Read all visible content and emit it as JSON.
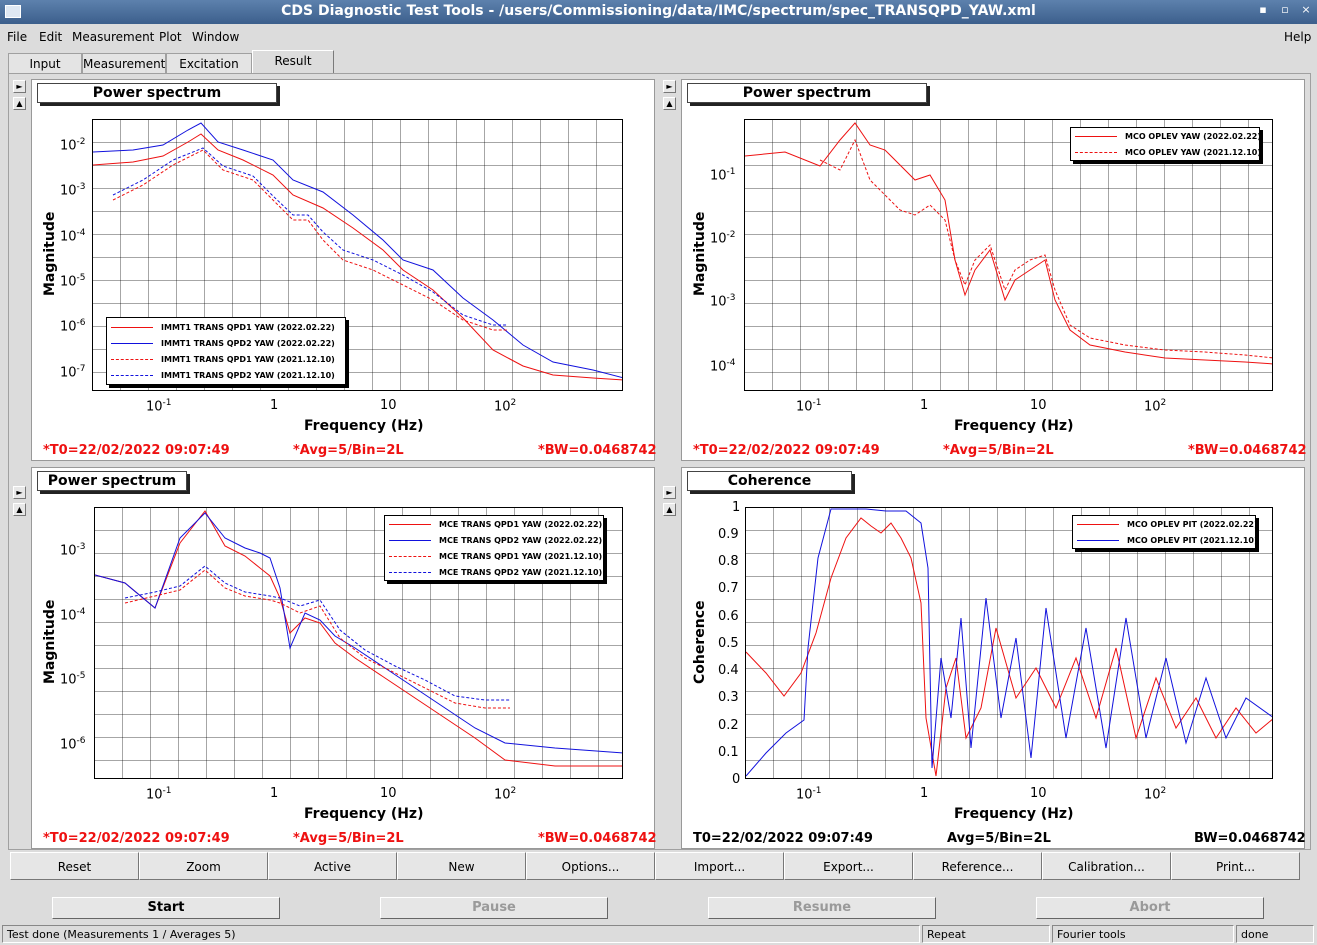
{
  "window": {
    "title": "CDS Diagnostic Test Tools - /users/Commissioning/data/IMC/spectrum/spec_TRANSQPD_YAW.xml",
    "controls": [
      "▪",
      "▫",
      "×"
    ]
  },
  "menu": {
    "items": [
      "File",
      "Edit",
      "Measurement",
      "Plot",
      "Window"
    ],
    "help": "Help"
  },
  "tabs": [
    {
      "label": "Input"
    },
    {
      "label": "Measurement"
    },
    {
      "label": "Excitation"
    },
    {
      "label": "Result"
    }
  ],
  "plots": [
    {
      "title": "Power spectrum",
      "ylabel": "Magnitude",
      "xlabel": "Frequency (Hz)",
      "yticks": [
        "10-2",
        "10-3",
        "10-4",
        "10-5",
        "10-6",
        "10-7"
      ],
      "xticks": [
        "10-1",
        "1",
        "10",
        "102"
      ],
      "legend": [
        {
          "name": "IMMT1 TRANS QPD1 YAW (2022.02.22)",
          "color": "#ee1111",
          "style": "solid"
        },
        {
          "name": "IMMT1 TRANS QPD2 YAW (2022.02.22)",
          "color": "#1111dd",
          "style": "solid"
        },
        {
          "name": "IMMT1 TRANS QPD1 YAW (2021.12.10)",
          "color": "#ee1111",
          "style": "dashed"
        },
        {
          "name": "IMMT1 TRANS QPD2 YAW (2021.12.10)",
          "color": "#1111dd",
          "style": "dashed"
        }
      ],
      "t0": "*T0=22/02/2022 09:07:49",
      "avg": "*Avg=5/Bin=2L",
      "bw": "*BW=0.0468742"
    },
    {
      "title": "Power spectrum",
      "ylabel": "Magnitude",
      "xlabel": "Frequency (Hz)",
      "yticks": [
        "10-1",
        "10-2",
        "10-3",
        "10-4"
      ],
      "xticks": [
        "10-1",
        "1",
        "10",
        "102"
      ],
      "legend": [
        {
          "name": "MCO OPLEV YAW (2022.02.22)",
          "color": "#ee1111",
          "style": "solid"
        },
        {
          "name": "MCO OPLEV YAW (2021.12.10)",
          "color": "#ee1111",
          "style": "dashed"
        }
      ],
      "t0": "*T0=22/02/2022 09:07:49",
      "avg": "*Avg=5/Bin=2L",
      "bw": "*BW=0.0468742"
    },
    {
      "title": "Power spectrum",
      "ylabel": "Magnitude",
      "xlabel": "Frequency (Hz)",
      "yticks": [
        "10-3",
        "10-4",
        "10-5",
        "10-6"
      ],
      "xticks": [
        "10-1",
        "1",
        "10",
        "102"
      ],
      "legend": [
        {
          "name": "MCE TRANS QPD1 YAW (2022.02.22)",
          "color": "#ee1111",
          "style": "solid"
        },
        {
          "name": "MCE TRANS QPD2 YAW (2022.02.22)",
          "color": "#1111dd",
          "style": "solid"
        },
        {
          "name": "MCE TRANS QPD1 YAW (2021.12.10)",
          "color": "#ee1111",
          "style": "dashed"
        },
        {
          "name": "MCE TRANS QPD2 YAW (2021.12.10)",
          "color": "#1111dd",
          "style": "dashed"
        }
      ],
      "t0": "*T0=22/02/2022 09:07:49",
      "avg": "*Avg=5/Bin=2L",
      "bw": "*BW=0.0468742"
    },
    {
      "title": "Coherence",
      "ylabel": "Coherence",
      "xlabel": "Frequency (Hz)",
      "yticks": [
        "1",
        "0.9",
        "0.8",
        "0.7",
        "0.6",
        "0.5",
        "0.4",
        "0.3",
        "0.2",
        "0.1",
        "0"
      ],
      "xticks": [
        "10-1",
        "1",
        "10",
        "102"
      ],
      "legend": [
        {
          "name": "MCO OPLEV PIT (2022.02.22)",
          "color": "#ee1111",
          "style": "solid"
        },
        {
          "name": "MCO OPLEV PIT (2021.12.10)",
          "color": "#1111dd",
          "style": "solid"
        }
      ],
      "t0": "T0=22/02/2022 09:07:49",
      "avg": "Avg=5/Bin=2L",
      "bw": "BW=0.0468742"
    }
  ],
  "buttons": [
    "Reset",
    "Zoom",
    "Active",
    "New",
    "Options...",
    "Import...",
    "Export...",
    "Reference...",
    "Calibration...",
    "Print..."
  ],
  "actions": [
    {
      "label": "Start",
      "enabled": true
    },
    {
      "label": "Pause",
      "enabled": false
    },
    {
      "label": "Resume",
      "enabled": false
    },
    {
      "label": "Abort",
      "enabled": false
    }
  ],
  "status": {
    "message": "Test done (Measurements 1 / Averages 5)",
    "repeat": "Repeat",
    "fourier": "Fourier tools",
    "state": "done"
  },
  "chart_data": [
    {
      "type": "line",
      "title": "Power spectrum",
      "xlabel": "Frequency (Hz)",
      "ylabel": "Magnitude",
      "xscale": "log",
      "yscale": "log",
      "xlim": [
        0.03,
        800
      ],
      "ylim": [
        3e-08,
        0.05
      ],
      "legend_position": "bottom-left",
      "grid": true,
      "series": [
        {
          "name": "IMMT1 TRANS QPD1 YAW (2022.02.22)",
          "x": [
            0.03,
            0.1,
            0.25,
            0.5,
            1,
            2,
            5,
            10,
            30,
            100,
            800
          ],
          "y": [
            0.004,
            0.008,
            0.02,
            0.003,
            0.001,
            0.0003,
            4e-05,
            1e-05,
            1e-06,
            1e-07,
            6e-08
          ]
        },
        {
          "name": "IMMT1 TRANS QPD2 YAW (2022.02.22)",
          "x": [
            0.03,
            0.1,
            0.25,
            0.5,
            1,
            2,
            5,
            10,
            30,
            100,
            800
          ],
          "y": [
            0.007,
            0.01,
            0.035,
            0.008,
            0.002,
            0.0008,
            0.0001,
            2e-05,
            2e-06,
            2e-07,
            7e-08
          ]
        },
        {
          "name": "IMMT1 TRANS QPD1 YAW (2021.12.10)",
          "x": [
            0.03,
            0.1,
            0.25,
            0.5,
            1,
            2,
            5,
            10,
            30,
            100
          ],
          "y": [
            0.0005,
            0.0008,
            0.008,
            0.0015,
            0.0008,
            0.0001,
            1e-05,
            5e-06,
            8e-07,
            8e-07
          ]
        },
        {
          "name": "IMMT1 TRANS QPD2 YAW (2021.12.10)",
          "x": [
            0.03,
            0.1,
            0.25,
            0.5,
            1,
            2,
            5,
            10,
            30,
            100
          ],
          "y": [
            0.0006,
            0.001,
            0.01,
            0.002,
            0.0009,
            0.00015,
            1.5e-05,
            6e-06,
            9e-07,
            9e-07
          ]
        }
      ]
    },
    {
      "type": "line",
      "title": "Power spectrum",
      "xlabel": "Frequency (Hz)",
      "ylabel": "Magnitude",
      "xscale": "log",
      "yscale": "log",
      "xlim": [
        0.03,
        800
      ],
      "ylim": [
        5e-05,
        0.8
      ],
      "legend_position": "top-right",
      "grid": true,
      "series": [
        {
          "name": "MCO OPLEV YAW (2022.02.22)",
          "x": [
            0.03,
            0.1,
            0.13,
            0.25,
            0.4,
            0.7,
            1,
            1.3,
            2,
            3,
            4.5,
            6,
            10,
            100,
            800
          ],
          "y": [
            0.2,
            0.18,
            0.13,
            0.6,
            0.3,
            0.1,
            0.04,
            0.002,
            0.01,
            0.0015,
            0.005,
            0.0002,
            0.00012,
            0.0001,
            0.0001
          ]
        },
        {
          "name": "MCO OPLEV YAW (2021.12.10)",
          "x": [
            0.1,
            0.15,
            0.25,
            0.4,
            0.7,
            1,
            1.3,
            2,
            3,
            4.5,
            6,
            10,
            100
          ],
          "y": [
            0.18,
            0.1,
            0.3,
            0.06,
            0.03,
            0.04,
            0.003,
            0.012,
            0.002,
            0.006,
            0.0003,
            0.00015,
            0.00015
          ]
        }
      ]
    },
    {
      "type": "line",
      "title": "Power spectrum",
      "xlabel": "Frequency (Hz)",
      "ylabel": "Magnitude",
      "xscale": "log",
      "yscale": "log",
      "xlim": [
        0.03,
        800
      ],
      "ylim": [
        4e-07,
        0.004
      ],
      "legend_position": "top-right",
      "grid": true,
      "series": [
        {
          "name": "MCE TRANS QPD1 YAW (2022.02.22)",
          "x": [
            0.03,
            0.09,
            0.25,
            0.5,
            1,
            1.5,
            2,
            5,
            10,
            30,
            100,
            800
          ],
          "y": [
            0.0004,
            0.00013,
            0.003,
            0.0009,
            0.0006,
            0.0006,
            0.00015,
            4e-05,
            1e-05,
            2e-06,
            6e-07,
            5e-07
          ]
        },
        {
          "name": "MCE TRANS QPD2 YAW (2022.02.22)",
          "x": [
            0.03,
            0.09,
            0.25,
            0.5,
            1,
            1.5,
            2,
            5,
            10,
            30,
            100,
            800
          ],
          "y": [
            0.0004,
            0.00013,
            0.0035,
            0.0012,
            0.0008,
            0.0009,
            0.0001,
            5e-05,
            1.2e-05,
            3e-06,
            8e-07,
            7e-07
          ]
        },
        {
          "name": "MCE TRANS QPD1 YAW (2021.12.10)",
          "x": [
            0.05,
            0.1,
            0.25,
            0.5,
            1,
            2,
            5,
            10,
            30,
            100
          ],
          "y": [
            0.0002,
            0.0002,
            0.0004,
            0.0002,
            0.0002,
            0.0001,
            4e-05,
            1e-05,
            5e-06,
            5e-06
          ]
        },
        {
          "name": "MCE TRANS QPD2 YAW (2021.12.10)",
          "x": [
            0.05,
            0.1,
            0.25,
            0.5,
            1,
            2,
            5,
            10,
            30,
            100
          ],
          "y": [
            0.00025,
            0.00025,
            0.0005,
            0.00025,
            0.0002,
            0.00012,
            5e-05,
            1.2e-05,
            6e-06,
            6e-06
          ]
        }
      ]
    },
    {
      "type": "line",
      "title": "Coherence",
      "xlabel": "Frequency (Hz)",
      "ylabel": "Coherence",
      "xscale": "log",
      "yscale": "linear",
      "xlim": [
        0.03,
        800
      ],
      "ylim": [
        0,
        1
      ],
      "legend_position": "top-right",
      "grid": true,
      "series": [
        {
          "name": "MCO OPLEV PIT (2022.02.22)",
          "x": [
            0.03,
            0.065,
            0.1,
            0.2,
            0.3,
            0.5,
            0.8,
            1,
            1.5,
            3,
            10,
            100,
            800
          ],
          "y": [
            0.47,
            0.31,
            0.6,
            0.95,
            0.92,
            0.85,
            0.62,
            0.2,
            0.1,
            0.3,
            0.25,
            0.25,
            0.22
          ]
        },
        {
          "name": "MCO OPLEV PIT (2021.12.10)",
          "x": [
            0.03,
            0.09,
            0.12,
            0.2,
            0.5,
            0.9,
            1,
            1.5,
            3,
            10,
            100,
            800
          ],
          "y": [
            0.03,
            0.22,
            0.9,
            1.0,
            1.0,
            0.98,
            0.3,
            0.2,
            0.3,
            0.3,
            0.3,
            0.25
          ]
        }
      ]
    }
  ]
}
